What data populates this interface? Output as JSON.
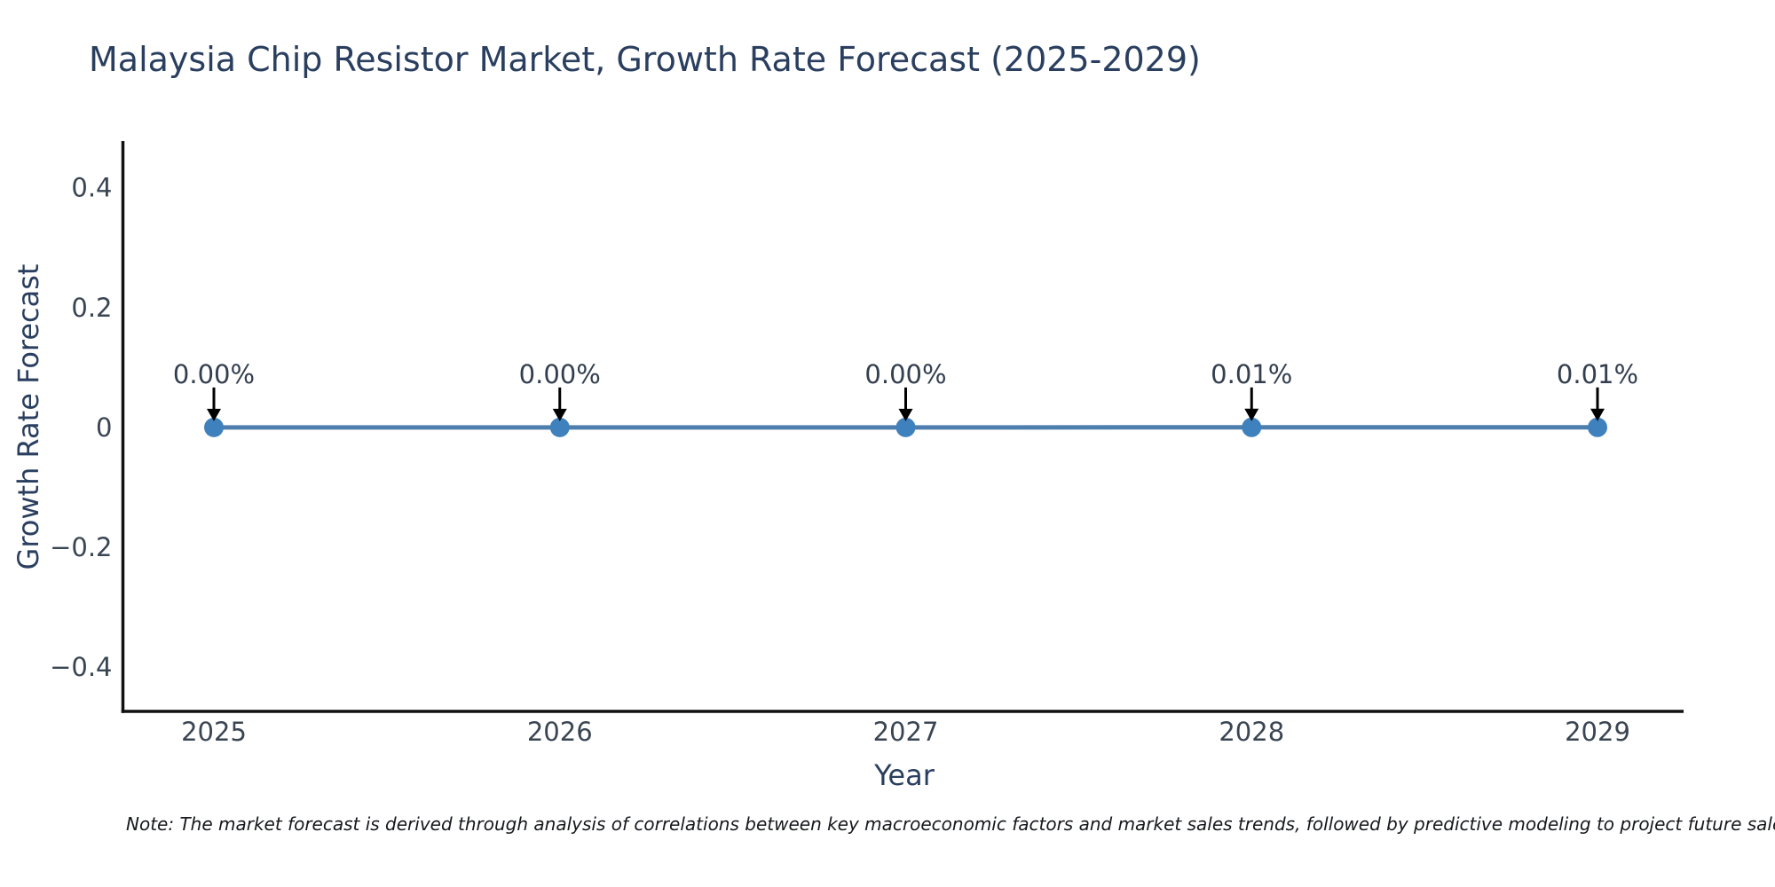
{
  "title": {
    "text": "Malaysia Chip Resistor Market, Growth Rate Forecast (2025-2029)",
    "color": "#2a3f5f"
  },
  "note": {
    "text": "Note: The market forecast is derived through analysis of correlations between key macroeconomic factors and market sales trends, followed by predictive modeling to project future sales"
  },
  "chart_data": {
    "type": "line",
    "title": "Malaysia Chip Resistor Market, Growth Rate Forecast (2025-2029)",
    "xlabel": "Year",
    "ylabel": "Growth Rate Forecast",
    "x": [
      2025,
      2026,
      2027,
      2028,
      2029
    ],
    "series": [
      {
        "name": "Growth Rate Forecast",
        "values_percent": [
          0.0,
          0.0,
          0.0,
          0.01,
          0.01
        ]
      }
    ],
    "point_labels": [
      "0.00%",
      "0.00%",
      "0.00%",
      "0.01%",
      "0.01%"
    ],
    "yticks": [
      0.4,
      0.2,
      0,
      -0.2,
      -0.4
    ],
    "ylim": [
      -0.474,
      0.478
    ],
    "grid": false,
    "legend": false,
    "colors": {
      "line": "#4d7ead",
      "marker": "#3f81bd",
      "axis": "#111111",
      "tick_label": "#3a4553",
      "annotation_text": "#333f4f",
      "annotation_arrow": "#000000",
      "axis_title": "#2a3f5f"
    }
  }
}
